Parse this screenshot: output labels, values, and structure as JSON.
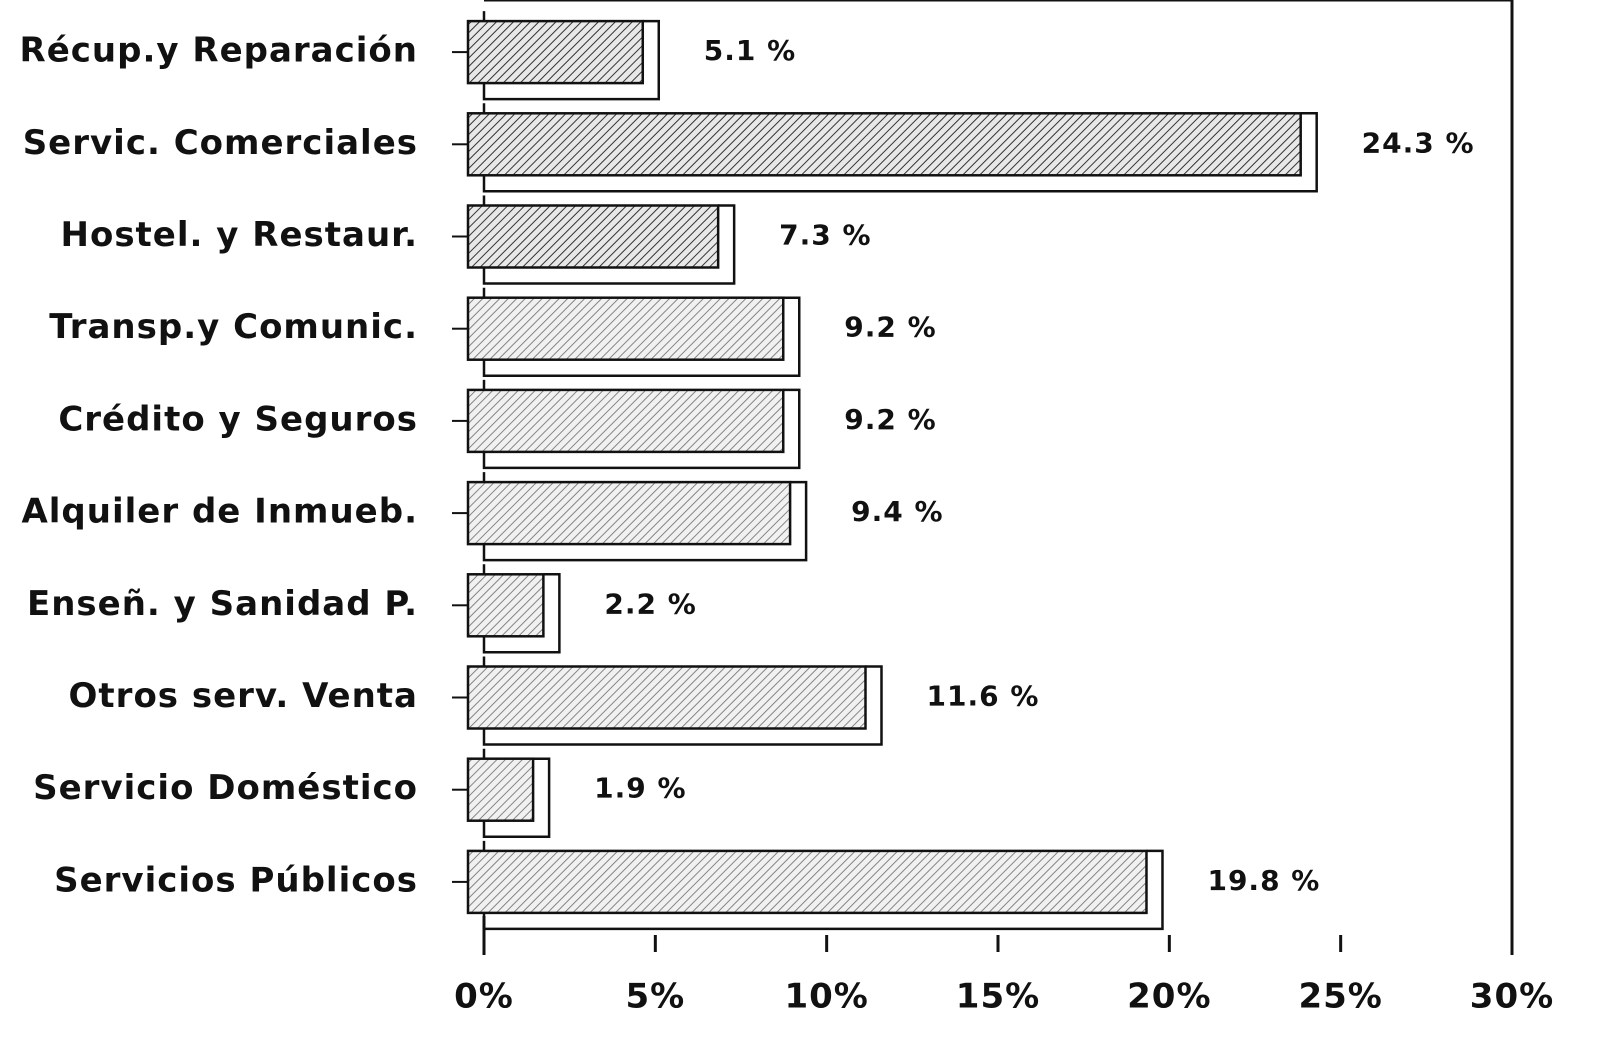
{
  "chart_data": {
    "type": "barh",
    "categories": [
      "Récup.y Reparación",
      "Servic. Comerciales",
      "Hostel. y Restaur.",
      "Transp.y Comunic.",
      "Crédito y Seguros",
      "Alquiler de Inmueb.",
      "Enseñ. y Sanidad P.",
      "Otros serv. Venta",
      "Servicio Doméstico",
      "Servicios Públicos"
    ],
    "values": [
      5.1,
      24.3,
      7.3,
      9.2,
      9.2,
      9.4,
      2.2,
      11.6,
      1.9,
      19.8
    ],
    "value_labels": [
      "5.1 %",
      "24.3 %",
      "7.3 %",
      "9.2 %",
      "9.2 %",
      "9.4 %",
      "2.2 %",
      "11.6 %",
      "1.9 %",
      "19.8 %"
    ],
    "color": "#555555",
    "xlim": [
      0,
      30
    ],
    "xticks": [
      {
        "value": 0,
        "label": "0%"
      },
      {
        "value": 5,
        "label": "5%"
      },
      {
        "value": 10,
        "label": "10%"
      },
      {
        "value": 15,
        "label": "15%"
      },
      {
        "value": 20,
        "label": "20%"
      },
      {
        "value": 25,
        "label": "25%"
      },
      {
        "value": 30,
        "label": "30%"
      }
    ]
  }
}
